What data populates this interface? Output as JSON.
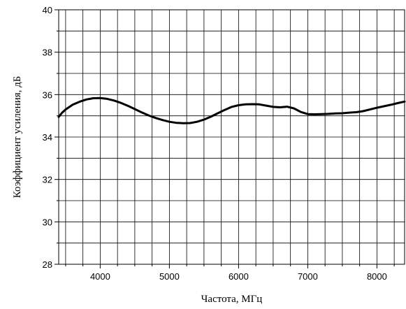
{
  "chart_data": {
    "type": "line",
    "title": "",
    "xlabel": "Частота, МГц",
    "ylabel": "Коэффициент усиления, дБ",
    "xlim": [
      3400,
      8400
    ],
    "ylim": [
      28,
      40
    ],
    "grid": true,
    "x_ticks": [
      4000,
      5000,
      6000,
      7000,
      8000
    ],
    "y_ticks": [
      28,
      30,
      32,
      34,
      36,
      38,
      40
    ],
    "series": [
      {
        "x": [
          3400,
          3450,
          3500,
          3600,
          3700,
          3800,
          3900,
          4000,
          4100,
          4200,
          4300,
          4400,
          4500,
          4600,
          4700,
          4800,
          4900,
          5000,
          5100,
          5200,
          5300,
          5400,
          5500,
          5600,
          5700,
          5800,
          5900,
          6000,
          6100,
          6200,
          6300,
          6400,
          6500,
          6600,
          6700,
          6800,
          6900,
          7000,
          7100,
          7200,
          7300,
          7400,
          7500,
          7600,
          7700,
          7800,
          7900,
          8000,
          8100,
          8200,
          8300,
          8400
        ],
        "y": [
          34.95,
          35.15,
          35.3,
          35.52,
          35.66,
          35.77,
          35.83,
          35.84,
          35.8,
          35.72,
          35.61,
          35.47,
          35.32,
          35.16,
          35.02,
          34.9,
          34.8,
          34.72,
          34.67,
          34.65,
          34.66,
          34.72,
          34.82,
          34.96,
          35.12,
          35.28,
          35.42,
          35.5,
          35.54,
          35.55,
          35.54,
          35.48,
          35.42,
          35.4,
          35.43,
          35.35,
          35.18,
          35.08,
          35.07,
          35.08,
          35.09,
          35.11,
          35.12,
          35.15,
          35.17,
          35.22,
          35.3,
          35.38,
          35.45,
          35.52,
          35.6,
          35.67
        ]
      }
    ]
  },
  "colors": {
    "line": "#000000",
    "grid": "#000000",
    "background": "#ffffff"
  }
}
